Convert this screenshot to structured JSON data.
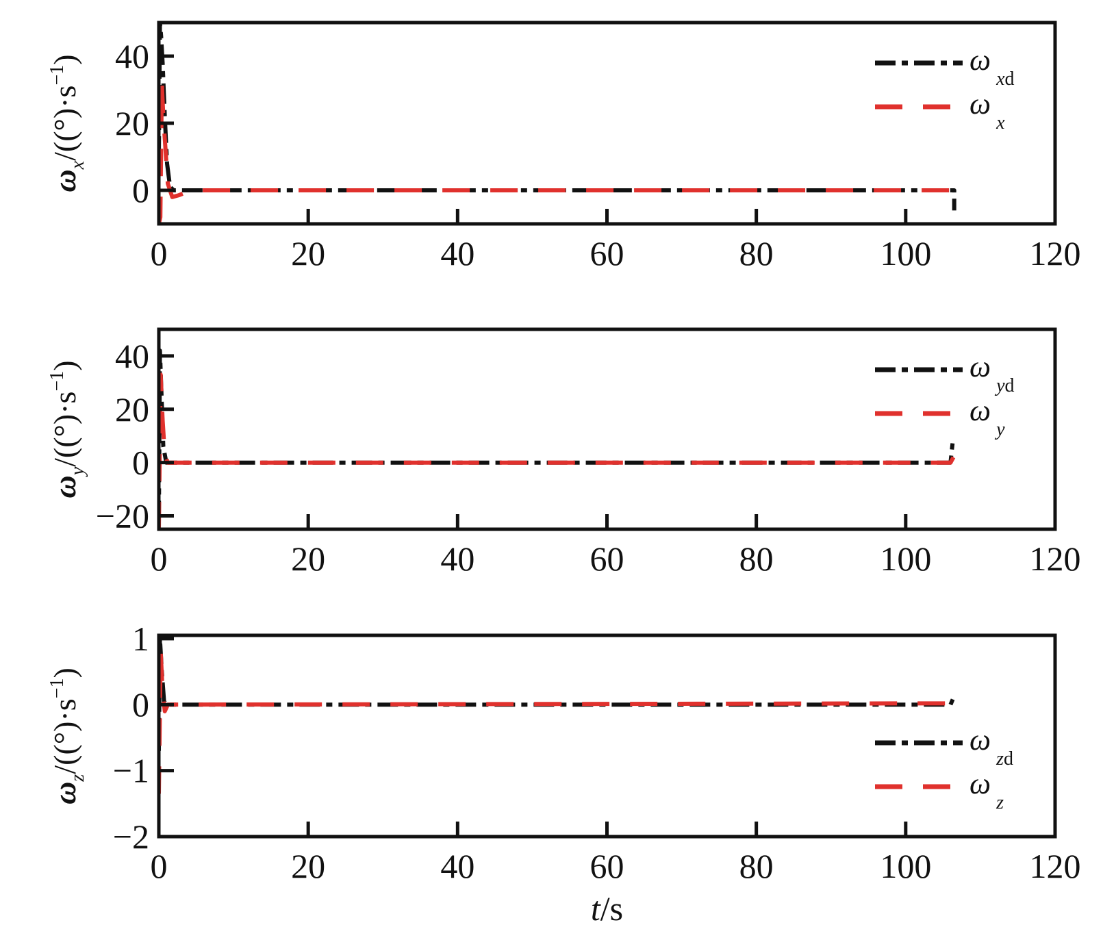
{
  "chart_data": [
    {
      "type": "line",
      "ylabel": {
        "symbol": "ω",
        "subscript": "x",
        "unit": "/((°)·s",
        "exp": "−1",
        "close": ")"
      },
      "xlim": [
        0,
        120
      ],
      "ylim": [
        -10,
        50
      ],
      "xticks": [
        0,
        20,
        40,
        60,
        80,
        100,
        120
      ],
      "yticks": [
        0,
        20,
        40
      ],
      "xtick_labels": [
        "0",
        "20",
        "40",
        "60",
        "80",
        "100",
        "120"
      ],
      "ytick_labels": [
        "0",
        "20",
        "40"
      ],
      "legend_position": "top-right",
      "series": [
        {
          "name": "ω_xd",
          "label_main": "ω",
          "label_sub_italic": "x",
          "label_sub_plain": "d",
          "color": "#111111",
          "dash": "dashdot",
          "points": [
            [
              0,
              10
            ],
            [
              0.15,
              50
            ],
            [
              0.3,
              46
            ],
            [
              0.5,
              38
            ],
            [
              0.8,
              22
            ],
            [
              1.1,
              8
            ],
            [
              1.5,
              1
            ],
            [
              2,
              0
            ],
            [
              106.5,
              0
            ],
            [
              106.5,
              -6
            ]
          ]
        },
        {
          "name": "ω_x",
          "label_main": "ω",
          "label_sub_italic": "x",
          "label_sub_plain": "",
          "color": "#e0312d",
          "dash": "dash",
          "points": [
            [
              0,
              -10
            ],
            [
              0.2,
              -8
            ],
            [
              0.4,
              32
            ],
            [
              0.6,
              22
            ],
            [
              0.9,
              12
            ],
            [
              1.2,
              2
            ],
            [
              1.8,
              -2
            ],
            [
              2.6,
              -1.5
            ],
            [
              4,
              -0.3
            ],
            [
              5,
              0
            ],
            [
              106.2,
              0
            ],
            [
              106.5,
              2
            ]
          ]
        }
      ]
    },
    {
      "type": "line",
      "ylabel": {
        "symbol": "ω",
        "subscript": "y",
        "unit": "/((°)·s",
        "exp": "−1",
        "close": ")"
      },
      "xlim": [
        0,
        120
      ],
      "ylim": [
        -25,
        50
      ],
      "xticks": [
        0,
        20,
        40,
        60,
        80,
        100,
        120
      ],
      "yticks": [
        -20,
        0,
        20,
        40
      ],
      "xtick_labels": [
        "0",
        "20",
        "40",
        "60",
        "80",
        "100",
        "120"
      ],
      "ytick_labels": [
        "−20",
        "0",
        "20",
        "40"
      ],
      "legend_position": "top-right",
      "series": [
        {
          "name": "ω_yd",
          "label_main": "ω",
          "label_sub_italic": "y",
          "label_sub_plain": "d",
          "color": "#111111",
          "dash": "dashdot",
          "points": [
            [
              0,
              -22
            ],
            [
              0.15,
              42
            ],
            [
              0.35,
              26
            ],
            [
              0.6,
              6
            ],
            [
              1,
              0
            ],
            [
              106,
              0
            ],
            [
              106.3,
              8
            ]
          ]
        },
        {
          "name": "ω_y",
          "label_main": "ω",
          "label_sub_italic": "y",
          "label_sub_plain": "",
          "color": "#e0312d",
          "dash": "dash",
          "points": [
            [
              0,
              -25
            ],
            [
              0.25,
              33
            ],
            [
              0.5,
              16
            ],
            [
              0.8,
              3
            ],
            [
              1.2,
              0
            ],
            [
              106,
              0
            ],
            [
              106.4,
              2
            ]
          ]
        }
      ]
    },
    {
      "type": "line",
      "ylabel": {
        "symbol": "ω",
        "subscript": "z",
        "unit": "/((°)·s",
        "exp": "−1",
        "close": ")"
      },
      "xlabel": {
        "var": "t",
        "unit": "/s"
      },
      "xlim": [
        0,
        120
      ],
      "ylim": [
        -2,
        1.05
      ],
      "xticks": [
        0,
        20,
        40,
        60,
        80,
        100,
        120
      ],
      "yticks": [
        -2,
        -1,
        0,
        1
      ],
      "xtick_labels": [
        "0",
        "20",
        "40",
        "60",
        "80",
        "100",
        "120"
      ],
      "ytick_labels": [
        "−2",
        "−1",
        "0",
        "1"
      ],
      "legend_position": "bottom-right",
      "series": [
        {
          "name": "ω_zd",
          "label_main": "ω",
          "label_sub_italic": "z",
          "label_sub_plain": "d",
          "color": "#111111",
          "dash": "dashdot",
          "points": [
            [
              0,
              -0.7
            ],
            [
              0.15,
              1
            ],
            [
              0.4,
              0.5
            ],
            [
              0.7,
              0.05
            ],
            [
              1,
              0
            ],
            [
              106,
              0
            ],
            [
              106.3,
              0.08
            ]
          ]
        },
        {
          "name": "ω_z",
          "label_main": "ω",
          "label_sub_italic": "z",
          "label_sub_plain": "",
          "color": "#e0312d",
          "dash": "dash",
          "points": [
            [
              0,
              -1.35
            ],
            [
              0.25,
              0.8
            ],
            [
              0.5,
              0.2
            ],
            [
              0.8,
              -0.1
            ],
            [
              1.2,
              0
            ],
            [
              106,
              0.02
            ],
            [
              106.4,
              0.15
            ]
          ]
        }
      ]
    }
  ]
}
